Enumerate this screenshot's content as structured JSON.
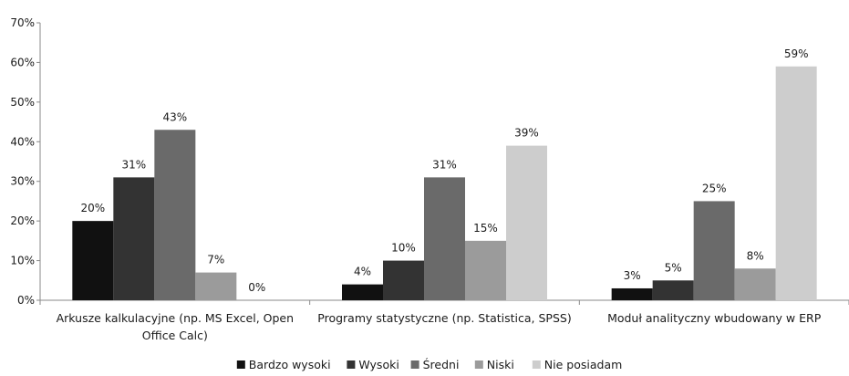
{
  "chart_data": {
    "type": "bar",
    "categories": [
      [
        "Arkusze kalkulacyjne (np. MS Excel, Open",
        "Office Calc)"
      ],
      [
        "Programy statystyczne (np. Statistica, SPSS)"
      ],
      [
        "Moduł analityczny wbudowany w ERP"
      ]
    ],
    "series": [
      {
        "name": "Bardzo wysoki",
        "color": "#111111",
        "values": [
          20,
          4,
          3
        ]
      },
      {
        "name": "Wysoki",
        "color": "#333333",
        "values": [
          31,
          10,
          5
        ]
      },
      {
        "name": "Średni",
        "color": "#6a6a6a",
        "values": [
          43,
          31,
          25
        ]
      },
      {
        "name": "Niski",
        "color": "#9b9b9b",
        "values": [
          7,
          15,
          8
        ]
      },
      {
        "name": "Nie posiadam",
        "color": "#cdcdcd",
        "values": [
          0,
          39,
          59
        ]
      }
    ],
    "ylim": [
      0,
      70
    ],
    "yticks": [
      0,
      10,
      20,
      30,
      40,
      50,
      60,
      70
    ],
    "tick_suffix": "%",
    "data_label_suffix": "%",
    "grid": false,
    "legend_position": "bottom"
  }
}
